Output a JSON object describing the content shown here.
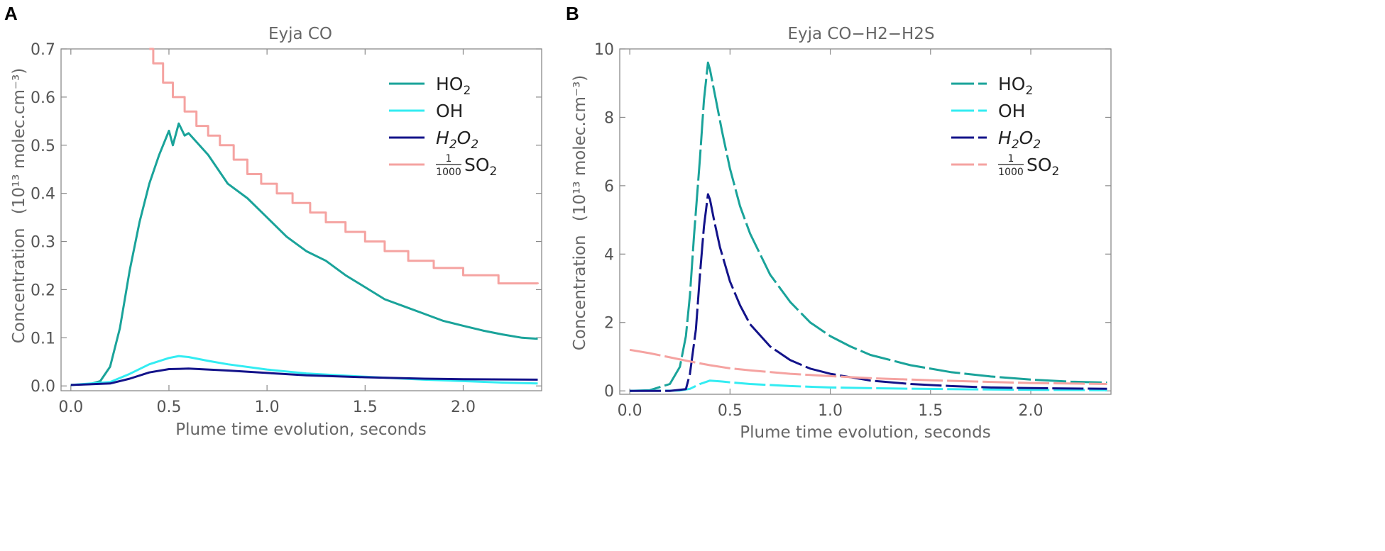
{
  "figure": {
    "panels": [
      "A",
      "B"
    ]
  },
  "chart_data": [
    {
      "panel_label": "A",
      "type": "line",
      "title": "Eyja CO",
      "xlabel": "Plume time evolution, seconds",
      "ylabel_prefix": "Concentration",
      "ylabel_units": "(10¹³ molec.cm⁻³)",
      "xlim": [
        -0.05,
        2.4
      ],
      "ylim": [
        -0.01,
        0.7
      ],
      "xticks": [
        "0.0",
        "0.5",
        "1.0",
        "1.5",
        "2.0"
      ],
      "xtick_values": [
        0,
        0.5,
        1.0,
        1.5,
        2.0
      ],
      "yticks": [
        "0.0",
        "0.1",
        "0.2",
        "0.3",
        "0.4",
        "0.5",
        "0.6",
        "0.7"
      ],
      "ytick_values": [
        0,
        0.1,
        0.2,
        0.3,
        0.4,
        0.5,
        0.6,
        0.7
      ],
      "grid": false,
      "legend_position": "top-right",
      "series": [
        {
          "name": "HO₂",
          "label_main": "HO",
          "label_sub": "2",
          "color": "#1aa39a",
          "dash": "solid",
          "x": [
            0,
            0.1,
            0.15,
            0.2,
            0.25,
            0.3,
            0.35,
            0.4,
            0.45,
            0.5,
            0.52,
            0.55,
            0.58,
            0.6,
            0.7,
            0.8,
            0.9,
            1.0,
            1.1,
            1.2,
            1.3,
            1.4,
            1.5,
            1.6,
            1.7,
            1.8,
            1.9,
            2.0,
            2.1,
            2.2,
            2.3,
            2.38
          ],
          "values": [
            0.002,
            0.004,
            0.01,
            0.04,
            0.12,
            0.24,
            0.34,
            0.42,
            0.48,
            0.53,
            0.5,
            0.545,
            0.52,
            0.525,
            0.48,
            0.42,
            0.39,
            0.35,
            0.31,
            0.28,
            0.26,
            0.23,
            0.205,
            0.18,
            0.165,
            0.15,
            0.135,
            0.125,
            0.115,
            0.107,
            0.1,
            0.098
          ]
        },
        {
          "name": "OH",
          "label_main": "OH",
          "label_sub": "",
          "color": "#33ecf2",
          "dash": "solid",
          "x": [
            0,
            0.2,
            0.3,
            0.4,
            0.5,
            0.55,
            0.6,
            0.7,
            0.8,
            1.0,
            1.2,
            1.5,
            1.8,
            2.0,
            2.2,
            2.38
          ],
          "values": [
            0.002,
            0.008,
            0.025,
            0.045,
            0.058,
            0.062,
            0.06,
            0.052,
            0.045,
            0.034,
            0.026,
            0.019,
            0.013,
            0.01,
            0.007,
            0.005
          ]
        },
        {
          "name": "H₂O₂",
          "label_main": "H",
          "label_sub": "2",
          "label_main2": "O",
          "label_sub2": "2",
          "italic": true,
          "color": "#13138a",
          "dash": "solid",
          "x": [
            0,
            0.2,
            0.3,
            0.4,
            0.5,
            0.6,
            0.8,
            1.0,
            1.2,
            1.5,
            1.8,
            2.0,
            2.38
          ],
          "values": [
            0.002,
            0.005,
            0.015,
            0.028,
            0.035,
            0.036,
            0.032,
            0.027,
            0.022,
            0.018,
            0.015,
            0.014,
            0.013
          ]
        },
        {
          "name": "1/1000 SO₂",
          "label_frac_num": "1",
          "label_frac_den": "1000",
          "label_main": "SO",
          "label_sub": "2",
          "color": "#f5a3a1",
          "dash": "solid",
          "stairs": true,
          "x": [
            0.4,
            0.42,
            0.47,
            0.52,
            0.58,
            0.64,
            0.7,
            0.76,
            0.83,
            0.9,
            0.97,
            1.05,
            1.13,
            1.22,
            1.3,
            1.4,
            1.5,
            1.6,
            1.72,
            1.85,
            2.0,
            2.18,
            2.38
          ],
          "values": [
            0.7,
            0.67,
            0.63,
            0.6,
            0.57,
            0.54,
            0.52,
            0.5,
            0.47,
            0.44,
            0.42,
            0.4,
            0.38,
            0.36,
            0.34,
            0.32,
            0.3,
            0.28,
            0.26,
            0.245,
            0.23,
            0.213,
            0.212
          ]
        }
      ]
    },
    {
      "panel_label": "B",
      "type": "line",
      "title": "Eyja CO−H2−H2S",
      "xlabel": "Plume time evolution, seconds",
      "ylabel_prefix": "Concentration",
      "ylabel_units": "(10¹³ molec.cm⁻³)",
      "xlim": [
        -0.05,
        2.4
      ],
      "ylim": [
        -0.1,
        10
      ],
      "xticks": [
        "0.0",
        "0.5",
        "1.0",
        "1.5",
        "2.0"
      ],
      "xtick_values": [
        0,
        0.5,
        1.0,
        1.5,
        2.0
      ],
      "yticks": [
        "0",
        "2",
        "4",
        "6",
        "8",
        "10"
      ],
      "ytick_values": [
        0,
        2,
        4,
        6,
        8,
        10
      ],
      "grid": false,
      "legend_position": "top-right",
      "series": [
        {
          "name": "HO₂",
          "label_main": "HO",
          "label_sub": "2",
          "color": "#1aa39a",
          "dash": "dashed",
          "x": [
            0,
            0.1,
            0.2,
            0.25,
            0.28,
            0.3,
            0.32,
            0.35,
            0.37,
            0.39,
            0.4,
            0.41,
            0.43,
            0.46,
            0.5,
            0.55,
            0.6,
            0.7,
            0.8,
            0.9,
            1.0,
            1.1,
            1.2,
            1.4,
            1.6,
            1.8,
            2.0,
            2.2,
            2.38
          ],
          "values": [
            0,
            0.02,
            0.2,
            0.7,
            1.6,
            2.8,
            4.5,
            6.8,
            8.5,
            9.6,
            9.4,
            9.1,
            8.5,
            7.6,
            6.5,
            5.4,
            4.6,
            3.4,
            2.6,
            2.0,
            1.6,
            1.3,
            1.05,
            0.75,
            0.55,
            0.42,
            0.33,
            0.27,
            0.24
          ]
        },
        {
          "name": "OH",
          "label_main": "OH",
          "label_sub": "",
          "color": "#33ecf2",
          "dash": "dashed",
          "x": [
            0,
            0.25,
            0.3,
            0.35,
            0.4,
            0.45,
            0.5,
            0.6,
            0.8,
            1.0,
            1.3,
            1.6,
            2.0,
            2.38
          ],
          "values": [
            0,
            0.01,
            0.06,
            0.2,
            0.3,
            0.28,
            0.25,
            0.2,
            0.14,
            0.1,
            0.07,
            0.05,
            0.03,
            0.02
          ]
        },
        {
          "name": "H₂O₂",
          "label_main": "H",
          "label_sub": "2",
          "label_main2": "O",
          "label_sub2": "2",
          "italic": true,
          "color": "#13138a",
          "dash": "dashed",
          "x": [
            0,
            0.2,
            0.28,
            0.3,
            0.33,
            0.35,
            0.37,
            0.39,
            0.4,
            0.42,
            0.45,
            0.5,
            0.55,
            0.6,
            0.7,
            0.8,
            0.9,
            1.0,
            1.2,
            1.4,
            1.6,
            1.8,
            2.0,
            2.38
          ],
          "values": [
            0,
            0,
            0.05,
            0.5,
            1.8,
            3.4,
            4.8,
            5.75,
            5.6,
            5.0,
            4.2,
            3.2,
            2.5,
            1.95,
            1.3,
            0.9,
            0.65,
            0.5,
            0.3,
            0.2,
            0.14,
            0.1,
            0.08,
            0.06
          ]
        },
        {
          "name": "1/1000 SO₂",
          "label_frac_num": "1",
          "label_frac_den": "1000",
          "label_main": "SO",
          "label_sub": "2",
          "color": "#f5a3a1",
          "dash": "dashed",
          "x": [
            0,
            0.1,
            0.2,
            0.3,
            0.4,
            0.5,
            0.6,
            0.8,
            1.0,
            1.2,
            1.5,
            1.8,
            2.0,
            2.38
          ],
          "values": [
            1.2,
            1.1,
            0.98,
            0.86,
            0.75,
            0.66,
            0.6,
            0.5,
            0.43,
            0.37,
            0.31,
            0.26,
            0.23,
            0.2
          ]
        }
      ]
    }
  ]
}
